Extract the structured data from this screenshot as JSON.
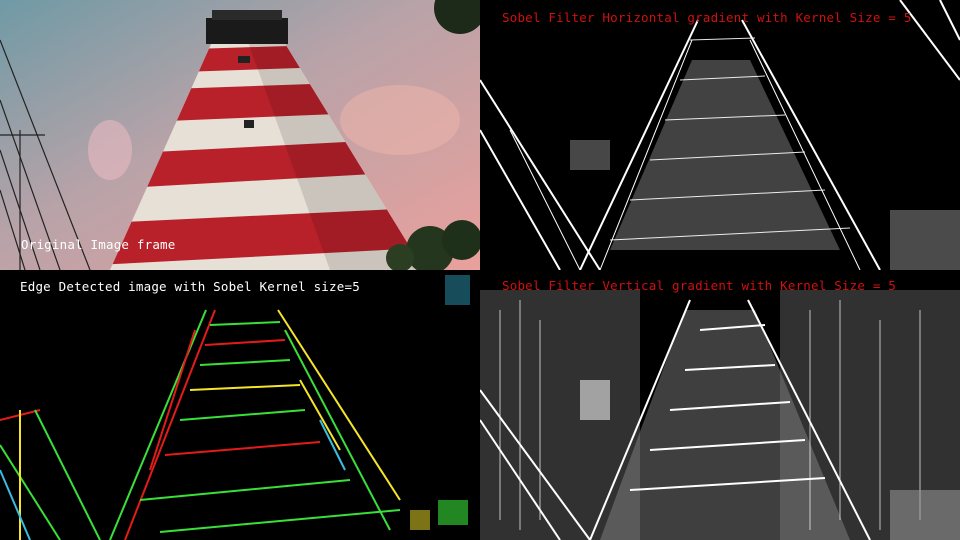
{
  "panels": {
    "original": {
      "caption": "Original Image frame"
    },
    "horizontal": {
      "caption": "Sobel Filter Horizontal gradient with Kernel Size = 5"
    },
    "edges": {
      "caption": "Edge Detected image with Sobel Kernel size=5"
    },
    "vertical": {
      "caption": "Sobel Filter Vertical gradient with Kernel Size = 5"
    }
  },
  "colors": {
    "sky_top": "#6f9aa6",
    "sky_bottom": "#e9a0a0",
    "stripe_red": "#b8202a",
    "stripe_white": "#e6e0d6",
    "caption_red": "#d01010",
    "edge_green": "#39e03a",
    "edge_red": "#e31b1b",
    "edge_yellow": "#f5e52a"
  }
}
